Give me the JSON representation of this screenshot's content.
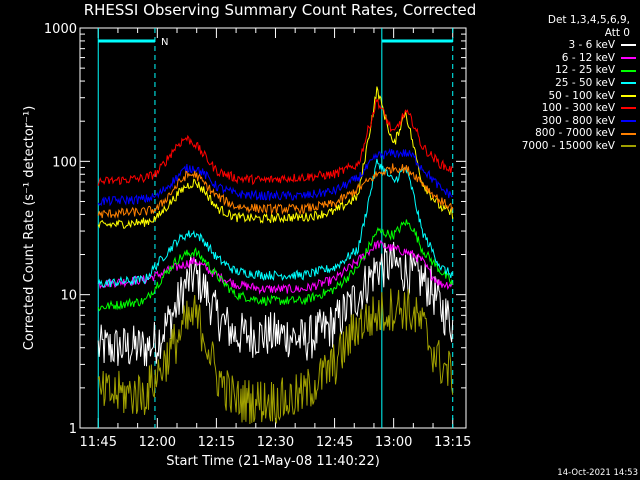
{
  "title": "RHESSI Observing Summary Count Rates, Corrected",
  "legend_header": [
    "Det 1,3,4,5,6,9,",
    "Att 0"
  ],
  "timestamp": "14-Oct-2021 14:53",
  "flag_label": "N",
  "colors": {
    "background": "#000000",
    "axes": "#ffffff",
    "flag": "#00ffff"
  },
  "chart_data": {
    "type": "line",
    "title": "RHESSI Observing Summary Count Rates, Corrected",
    "xlabel": "Start Time (21-May-08 11:40:22)",
    "ylabel": "Corrected Count Rate (s⁻¹ detector⁻¹)",
    "yscale": "log",
    "ylim": [
      1,
      1000
    ],
    "xlim_minutes_after_start": [
      0,
      98
    ],
    "x_ticks": [
      "11:45",
      "12:00",
      "12:15",
      "12:30",
      "12:45",
      "13:00",
      "13:15"
    ],
    "y_ticks": [
      "1",
      "10",
      "100",
      "1000"
    ],
    "legend_placement": "right",
    "series": [
      {
        "name": "3 - 6 keV",
        "color": "#ffffff",
        "values": [
          [
            11.75,
            4
          ],
          [
            11.95,
            4
          ],
          [
            12.0,
            4.5
          ],
          [
            12.08,
            8
          ],
          [
            12.12,
            12
          ],
          [
            12.16,
            14
          ],
          [
            12.2,
            11
          ],
          [
            12.25,
            7
          ],
          [
            12.33,
            5
          ],
          [
            12.45,
            5
          ],
          [
            12.55,
            5
          ],
          [
            12.62,
            4.5
          ],
          [
            12.75,
            6
          ],
          [
            12.85,
            10
          ],
          [
            12.93,
            16
          ],
          [
            13.0,
            17
          ],
          [
            13.05,
            15
          ],
          [
            13.08,
            14
          ],
          [
            13.12,
            13
          ],
          [
            13.16,
            11
          ],
          [
            13.2,
            8
          ],
          [
            13.25,
            6
          ]
        ]
      },
      {
        "name": "6 - 12 keV",
        "color": "#ff00ff",
        "values": [
          [
            11.75,
            12
          ],
          [
            11.95,
            13
          ],
          [
            12.0,
            14
          ],
          [
            12.08,
            16
          ],
          [
            12.12,
            17
          ],
          [
            12.16,
            18
          ],
          [
            12.2,
            16
          ],
          [
            12.25,
            14
          ],
          [
            12.33,
            12
          ],
          [
            12.45,
            11
          ],
          [
            12.55,
            11
          ],
          [
            12.62,
            11
          ],
          [
            12.75,
            13
          ],
          [
            12.85,
            18
          ],
          [
            12.93,
            24
          ],
          [
            13.0,
            22
          ],
          [
            13.05,
            21
          ],
          [
            13.08,
            20
          ],
          [
            13.12,
            18
          ],
          [
            13.16,
            14
          ],
          [
            13.2,
            12
          ],
          [
            13.25,
            12
          ]
        ]
      },
      {
        "name": "12 - 25 keV",
        "color": "#00ff00",
        "values": [
          [
            11.75,
            8
          ],
          [
            11.95,
            9
          ],
          [
            12.0,
            12
          ],
          [
            12.08,
            18
          ],
          [
            12.12,
            20
          ],
          [
            12.16,
            21
          ],
          [
            12.2,
            18
          ],
          [
            12.25,
            14
          ],
          [
            12.33,
            10
          ],
          [
            12.45,
            9
          ],
          [
            12.55,
            9
          ],
          [
            12.62,
            9
          ],
          [
            12.75,
            11
          ],
          [
            12.85,
            16
          ],
          [
            12.93,
            30
          ],
          [
            13.0,
            28
          ],
          [
            13.05,
            35
          ],
          [
            13.08,
            32
          ],
          [
            13.12,
            22
          ],
          [
            13.16,
            18
          ],
          [
            13.2,
            15
          ],
          [
            13.25,
            12
          ]
        ]
      },
      {
        "name": "25 - 50 keV",
        "color": "#00ffff",
        "values": [
          [
            11.75,
            12
          ],
          [
            11.95,
            13
          ],
          [
            12.0,
            17
          ],
          [
            12.08,
            25
          ],
          [
            12.12,
            28
          ],
          [
            12.16,
            29
          ],
          [
            12.2,
            25
          ],
          [
            12.25,
            19
          ],
          [
            12.33,
            15
          ],
          [
            12.45,
            14
          ],
          [
            12.55,
            14
          ],
          [
            12.62,
            14
          ],
          [
            12.75,
            16
          ],
          [
            12.85,
            22
          ],
          [
            12.93,
            100
          ],
          [
            13.0,
            70
          ],
          [
            13.05,
            90
          ],
          [
            13.08,
            60
          ],
          [
            13.12,
            30
          ],
          [
            13.16,
            22
          ],
          [
            13.2,
            16
          ],
          [
            13.25,
            14
          ]
        ]
      },
      {
        "name": "50 - 100 keV",
        "color": "#ffff00",
        "values": [
          [
            11.75,
            33
          ],
          [
            11.95,
            35
          ],
          [
            12.0,
            38
          ],
          [
            12.08,
            55
          ],
          [
            12.12,
            65
          ],
          [
            12.16,
            70
          ],
          [
            12.2,
            60
          ],
          [
            12.25,
            45
          ],
          [
            12.33,
            38
          ],
          [
            12.45,
            37
          ],
          [
            12.55,
            38
          ],
          [
            12.62,
            38
          ],
          [
            12.75,
            42
          ],
          [
            12.85,
            55
          ],
          [
            12.93,
            350
          ],
          [
            13.0,
            130
          ],
          [
            13.05,
            240
          ],
          [
            13.08,
            140
          ],
          [
            13.12,
            70
          ],
          [
            13.16,
            55
          ],
          [
            13.2,
            45
          ],
          [
            13.25,
            40
          ]
        ]
      },
      {
        "name": "100 - 300 keV",
        "color": "#ff0000",
        "values": [
          [
            11.75,
            70
          ],
          [
            11.95,
            75
          ],
          [
            12.0,
            82
          ],
          [
            12.08,
            130
          ],
          [
            12.12,
            150
          ],
          [
            12.16,
            135
          ],
          [
            12.2,
            110
          ],
          [
            12.25,
            85
          ],
          [
            12.33,
            75
          ],
          [
            12.45,
            72
          ],
          [
            12.55,
            75
          ],
          [
            12.62,
            76
          ],
          [
            12.75,
            80
          ],
          [
            12.85,
            95
          ],
          [
            12.93,
            290
          ],
          [
            13.0,
            160
          ],
          [
            13.05,
            235
          ],
          [
            13.08,
            200
          ],
          [
            13.12,
            130
          ],
          [
            13.16,
            110
          ],
          [
            13.2,
            95
          ],
          [
            13.25,
            85
          ]
        ]
      },
      {
        "name": "300 - 800 keV",
        "color": "#0000ff",
        "values": [
          [
            11.75,
            50
          ],
          [
            11.95,
            52
          ],
          [
            12.0,
            55
          ],
          [
            12.08,
            75
          ],
          [
            12.12,
            88
          ],
          [
            12.16,
            90
          ],
          [
            12.2,
            80
          ],
          [
            12.25,
            65
          ],
          [
            12.33,
            57
          ],
          [
            12.45,
            55
          ],
          [
            12.55,
            55
          ],
          [
            12.62,
            55
          ],
          [
            12.75,
            60
          ],
          [
            12.85,
            75
          ],
          [
            12.93,
            110
          ],
          [
            13.0,
            115
          ],
          [
            13.05,
            115
          ],
          [
            13.08,
            110
          ],
          [
            13.12,
            90
          ],
          [
            13.16,
            75
          ],
          [
            13.2,
            62
          ],
          [
            13.25,
            55
          ]
        ]
      },
      {
        "name": "800 - 7000 keV",
        "color": "#ff8000",
        "values": [
          [
            11.75,
            40
          ],
          [
            11.95,
            42
          ],
          [
            12.0,
            44
          ],
          [
            12.08,
            65
          ],
          [
            12.12,
            78
          ],
          [
            12.16,
            80
          ],
          [
            12.2,
            68
          ],
          [
            12.25,
            55
          ],
          [
            12.33,
            46
          ],
          [
            12.45,
            44
          ],
          [
            12.55,
            44
          ],
          [
            12.62,
            44
          ],
          [
            12.75,
            48
          ],
          [
            12.85,
            62
          ],
          [
            12.93,
            80
          ],
          [
            13.0,
            90
          ],
          [
            13.05,
            88
          ],
          [
            13.08,
            82
          ],
          [
            13.12,
            70
          ],
          [
            13.16,
            58
          ],
          [
            13.2,
            50
          ],
          [
            13.25,
            45
          ]
        ]
      },
      {
        "name": "7000 - 15000 keV",
        "color": "#a0a000",
        "values": [
          [
            11.75,
            1.8
          ],
          [
            11.95,
            1.8
          ],
          [
            12.0,
            2.5
          ],
          [
            12.08,
            4.5
          ],
          [
            12.12,
            6
          ],
          [
            12.16,
            7
          ],
          [
            12.2,
            5
          ],
          [
            12.25,
            2.5
          ],
          [
            12.33,
            1.6
          ],
          [
            12.45,
            1.6
          ],
          [
            12.55,
            1.6
          ],
          [
            12.62,
            1.8
          ],
          [
            12.75,
            3
          ],
          [
            12.85,
            6
          ],
          [
            12.93,
            7
          ],
          [
            13.0,
            8
          ],
          [
            13.05,
            8
          ],
          [
            13.08,
            7
          ],
          [
            13.12,
            6
          ],
          [
            13.16,
            4
          ],
          [
            13.2,
            3
          ],
          [
            13.25,
            2.5
          ]
        ]
      }
    ],
    "markers": {
      "flag_bars": [
        [
          11.75,
          11.99
        ],
        [
          12.95,
          13.25
        ]
      ],
      "dashed_lines": [
        11.99,
        13.25
      ],
      "solid_lines": [
        11.75,
        12.95
      ]
    }
  }
}
